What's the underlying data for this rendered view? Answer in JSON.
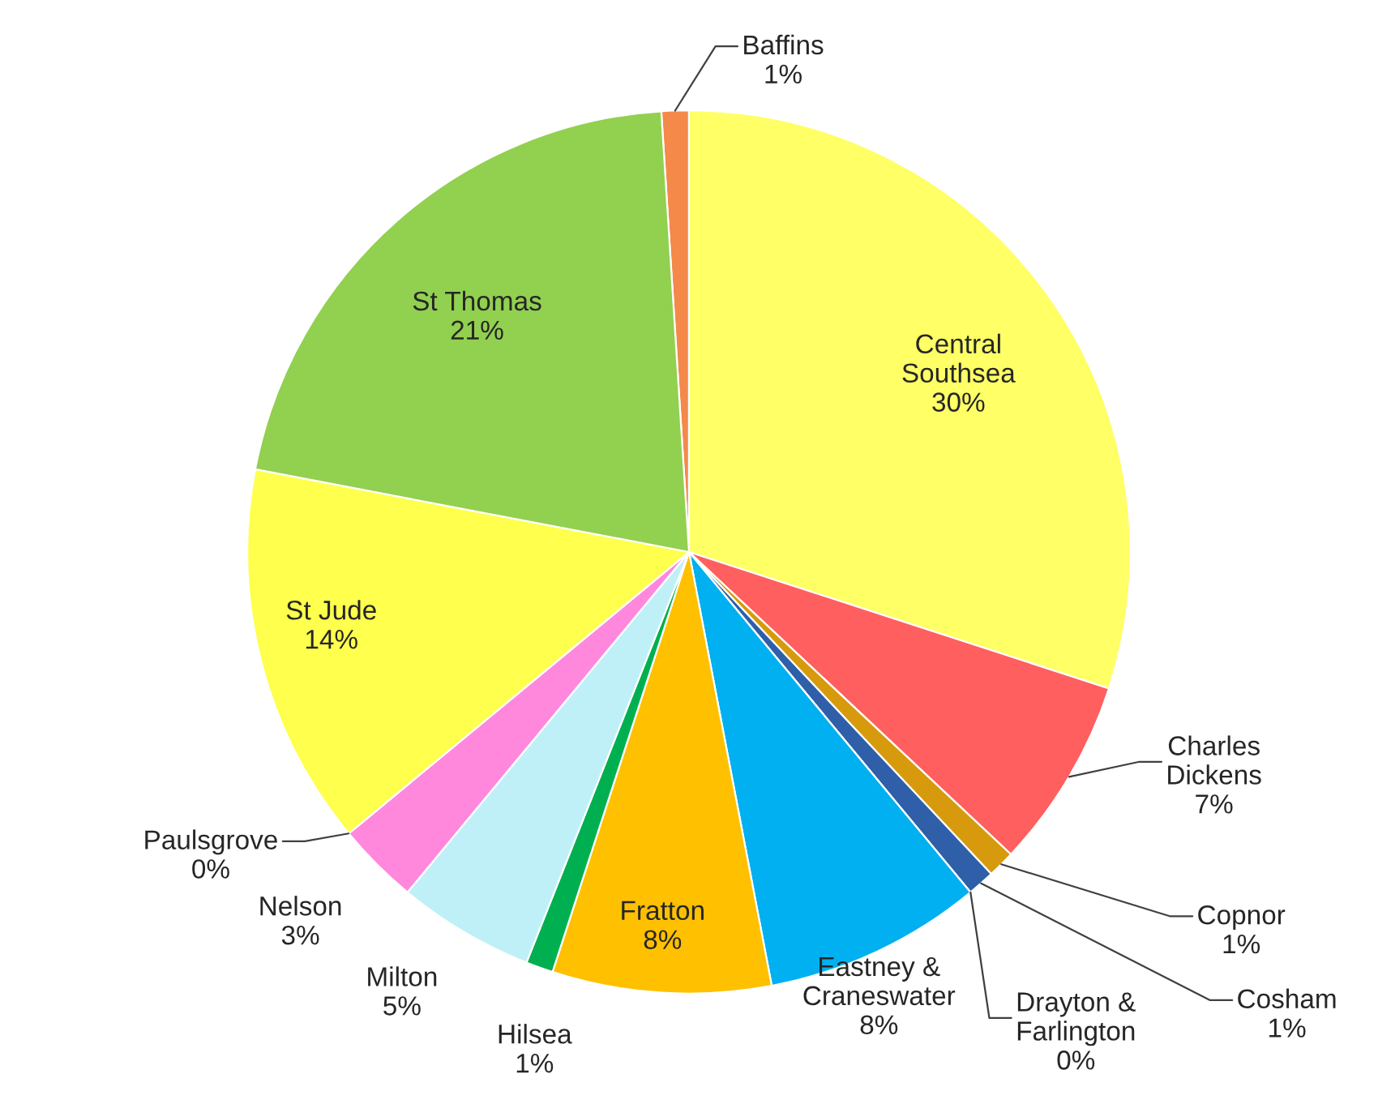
{
  "chart_data": {
    "type": "pie",
    "categories": [
      "Baffins",
      "Central Southsea",
      "Charles Dickens",
      "Copnor",
      "Cosham",
      "Drayton & Farlington",
      "Eastney & Craneswater",
      "Fratton",
      "Hilsea",
      "Milton",
      "Nelson",
      "Paulsgrove",
      "St Jude",
      "St Thomas"
    ],
    "values": [
      1,
      30,
      7,
      1,
      1,
      0,
      8,
      8,
      1,
      5,
      3,
      0,
      14,
      21
    ],
    "value_labels": [
      "1%",
      "30%",
      "7%",
      "1%",
      "1%",
      "0%",
      "8%",
      "8%",
      "1%",
      "5%",
      "3%",
      "0%",
      "14%",
      "21%"
    ],
    "colors": [
      "#f4894a",
      "#ffff66",
      "#ff5f5f",
      "#d69a0c",
      "#2e5fa8",
      "#2a9d6b",
      "#00b0f0",
      "#ffc000",
      "#00b050",
      "#bff0f8",
      "#ff88dd",
      "#8fb4e3",
      "#ffff4d",
      "#92d050"
    ]
  }
}
